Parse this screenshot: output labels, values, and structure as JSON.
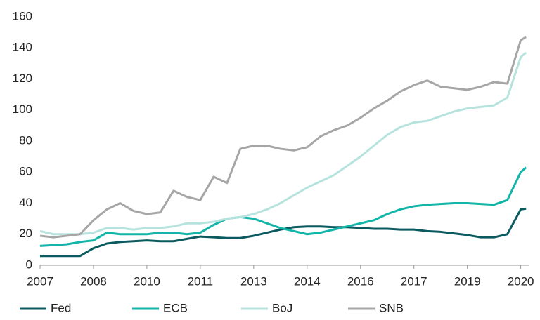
{
  "chart_data": {
    "type": "line",
    "x": [
      0,
      0.25,
      0.5,
      0.75,
      1,
      1.25,
      1.5,
      1.75,
      2,
      2.25,
      2.5,
      2.75,
      3,
      3.25,
      3.5,
      3.75,
      4,
      4.25,
      4.5,
      4.75,
      5,
      5.25,
      5.5,
      5.75,
      6,
      6.25,
      6.5,
      6.75,
      7,
      7.25,
      7.5,
      7.75,
      8,
      8.25,
      8.5,
      8.75,
      9,
      9.1
    ],
    "series": [
      {
        "name": "Fed",
        "color": "#0b5a5f",
        "values": [
          6,
          6,
          6,
          6,
          11,
          14,
          15,
          15.5,
          16,
          15.5,
          15.5,
          17,
          18.5,
          18,
          17.5,
          17.5,
          19,
          21,
          23,
          24.5,
          25,
          25,
          24.5,
          24.5,
          24,
          23.5,
          23.5,
          23,
          23,
          22,
          21.5,
          20.5,
          19.5,
          18,
          18,
          20,
          36,
          36.5
        ]
      },
      {
        "name": "ECB",
        "color": "#12b5a8",
        "values": [
          12.5,
          13,
          13.5,
          15,
          16,
          21,
          20,
          20,
          20,
          21,
          21,
          20,
          21,
          26,
          30,
          31,
          30,
          27,
          24,
          22,
          20,
          21,
          23,
          25,
          27,
          29,
          33,
          36,
          38,
          39,
          39.5,
          40,
          40,
          39.5,
          39,
          42,
          60,
          63
        ]
      },
      {
        "name": "BoJ",
        "color": "#b6e3de",
        "values": [
          22,
          20,
          20,
          20,
          21,
          24,
          24,
          23,
          24,
          24,
          25,
          27,
          27,
          28,
          30,
          31,
          33,
          36,
          40,
          45,
          50,
          54,
          58,
          64,
          70,
          77,
          84,
          89,
          92,
          93,
          96,
          99,
          101,
          102,
          103,
          108,
          134,
          137
        ]
      },
      {
        "name": "SNB",
        "color": "#a6a6a6",
        "values": [
          19,
          18,
          19,
          20,
          29,
          36,
          40,
          35,
          33,
          34,
          48,
          44,
          42,
          57,
          53,
          75,
          77,
          77,
          75,
          74,
          76,
          83,
          87,
          90,
          95,
          101,
          106,
          112,
          116,
          119,
          115,
          114,
          113,
          115,
          118,
          117,
          145,
          147
        ]
      }
    ],
    "xlim": [
      0,
      9.15
    ],
    "xticks": [
      {
        "value": 0,
        "label": "2007"
      },
      {
        "value": 1,
        "label": "2008"
      },
      {
        "value": 2,
        "label": "2010"
      },
      {
        "value": 3,
        "label": "2011"
      },
      {
        "value": 4,
        "label": "2013"
      },
      {
        "value": 5,
        "label": "2014"
      },
      {
        "value": 6,
        "label": "2016"
      },
      {
        "value": 7,
        "label": "2017"
      },
      {
        "value": 8,
        "label": "2019"
      },
      {
        "value": 9,
        "label": "2020"
      }
    ],
    "ylim": [
      0,
      160
    ],
    "yticks": [
      0,
      20,
      40,
      60,
      80,
      100,
      120,
      140,
      160
    ],
    "grid": false,
    "legend": "bottom"
  }
}
